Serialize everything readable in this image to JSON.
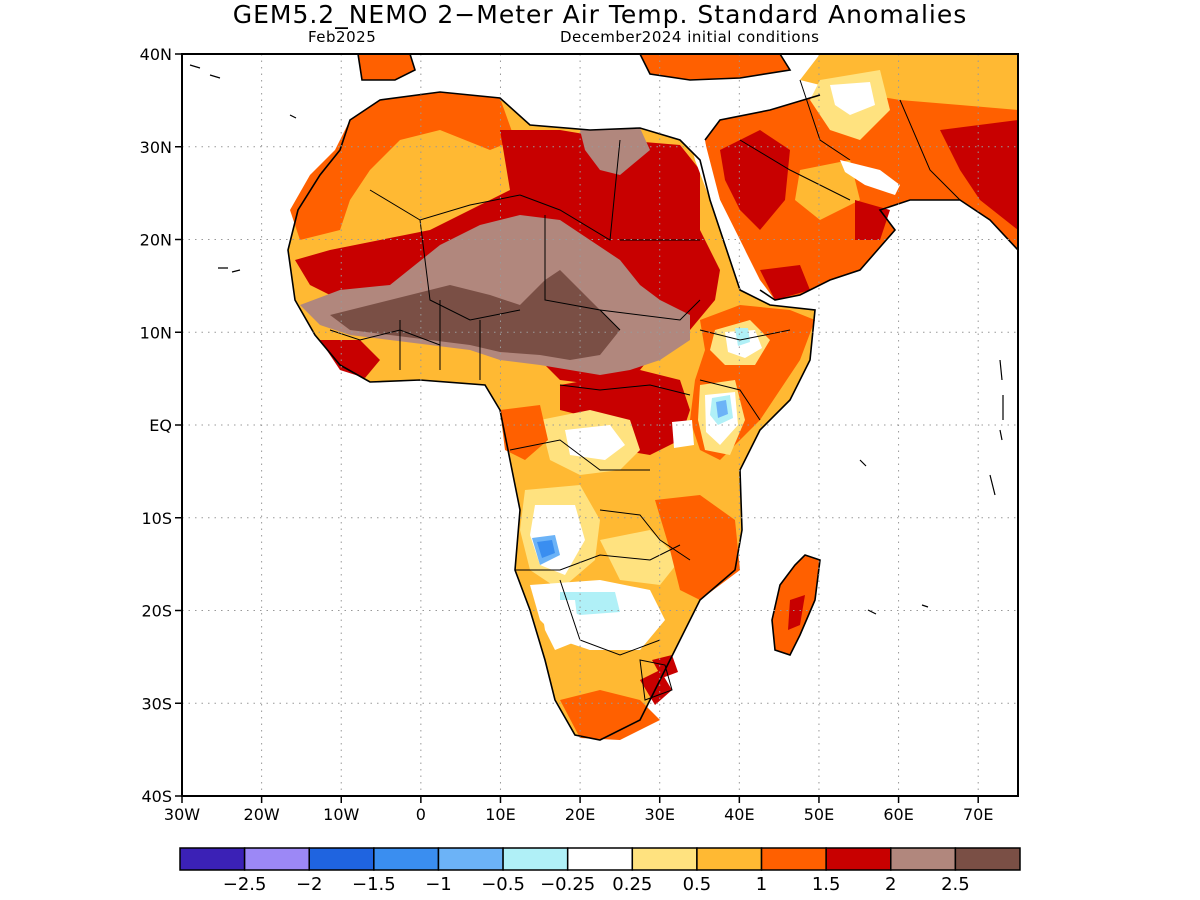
{
  "title": "GEM5.2_NEMO 2−Meter Air Temp. Standard Anomalies",
  "valid_month": "Feb2025",
  "initial_conditions": "December2024 initial conditions",
  "map": {
    "lon_range": [
      -30,
      75
    ],
    "lat_range": [
      -40,
      40
    ],
    "lat_ticks": [
      {
        "value": 40,
        "label": "40N"
      },
      {
        "value": 30,
        "label": "30N"
      },
      {
        "value": 20,
        "label": "20N"
      },
      {
        "value": 10,
        "label": "10N"
      },
      {
        "value": 0,
        "label": "EQ"
      },
      {
        "value": -10,
        "label": "10S"
      },
      {
        "value": -20,
        "label": "20S"
      },
      {
        "value": -30,
        "label": "30S"
      },
      {
        "value": -40,
        "label": "40S"
      }
    ],
    "lon_ticks": [
      {
        "value": -30,
        "label": "30W"
      },
      {
        "value": -20,
        "label": "20W"
      },
      {
        "value": -10,
        "label": "10W"
      },
      {
        "value": 0,
        "label": "0"
      },
      {
        "value": 10,
        "label": "10E"
      },
      {
        "value": 20,
        "label": "20E"
      },
      {
        "value": 30,
        "label": "30E"
      },
      {
        "value": 40,
        "label": "40E"
      },
      {
        "value": 50,
        "label": "50E"
      },
      {
        "value": 60,
        "label": "60E"
      },
      {
        "value": 70,
        "label": "70E"
      }
    ],
    "gridlines": true,
    "land_outline_color": "#000000",
    "anomaly_regions": [
      {
        "name": "north-africa-warm",
        "level": "0.5 to 1",
        "color": "#ffb933"
      },
      {
        "name": "sahara-hot",
        "level": "1.5 to 2",
        "color": "#c80000"
      },
      {
        "name": "sahel-hottest",
        "level": "above 2.5",
        "color": "#7a4f45"
      },
      {
        "name": "sahel-very-hot",
        "level": "2 to 2.5",
        "color": "#b1877d"
      },
      {
        "name": "angola-cool",
        "level": "-1.5 to -1",
        "color": "#3a8ef0"
      },
      {
        "name": "botswana-cool",
        "level": "-0.5 to -0.25",
        "color": "#b0f0f7"
      },
      {
        "name": "ethiopia-cool",
        "level": "-0.5 to -0.25",
        "color": "#b0f0f7"
      },
      {
        "name": "madagascar-warm",
        "level": "1 to 1.5",
        "color": "#ff6000"
      }
    ]
  },
  "colorbar": {
    "colors": [
      "#3b21b6",
      "#9c88f6",
      "#1f64e0",
      "#3a8ef0",
      "#6cb3f7",
      "#b0f0f7",
      "#ffffff",
      "#ffe27f",
      "#ffb933",
      "#ff6000",
      "#c80000",
      "#b1877d",
      "#7a4f45"
    ],
    "labels": [
      "−2.5",
      "−2",
      "−1.5",
      "−1",
      "−0.5",
      "−0.25",
      "0.25",
      "0.5",
      "1",
      "1.5",
      "2",
      "2.5"
    ]
  }
}
